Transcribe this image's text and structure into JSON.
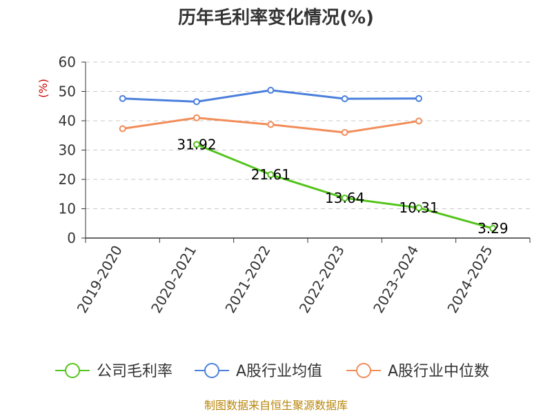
{
  "chart_data": {
    "type": "line",
    "title": "历年毛利率变化情况(%)",
    "ylabel": "(%)",
    "xlabel": "",
    "ylim": [
      0,
      60
    ],
    "yticks": [
      0,
      10,
      20,
      30,
      40,
      50,
      60
    ],
    "categories": [
      "2019-2020",
      "2020-2021",
      "2021-2022",
      "2022-2023",
      "2023-2024",
      "2024-2025"
    ],
    "grid": true,
    "legend_position": "bottom",
    "series": [
      {
        "name": "公司毛利率",
        "color": "#52c41a",
        "values": [
          null,
          31.92,
          21.61,
          13.64,
          10.31,
          3.29
        ],
        "labels": [
          "",
          "31.92",
          "21.61",
          "13.64",
          "10.31",
          "3.29"
        ]
      },
      {
        "name": "A股行业均值",
        "color": "#4a7fdc",
        "values": [
          47.6,
          46.5,
          50.4,
          47.5,
          47.6,
          null
        ]
      },
      {
        "name": "A股行业中位数",
        "color": "#f28c58",
        "values": [
          37.3,
          41.0,
          38.7,
          36.0,
          39.9,
          null
        ]
      }
    ]
  },
  "source": "制图数据来自恒生聚源数据库"
}
